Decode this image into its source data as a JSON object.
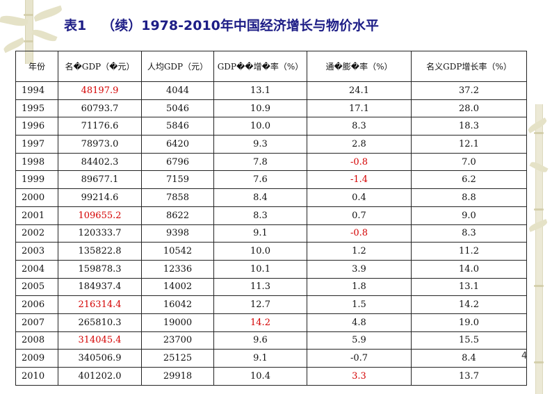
{
  "slide": {
    "title_label": "表1",
    "title_text": "（续）1978-2010年中国经济增长与物价水平",
    "page_number": "4"
  },
  "table": {
    "headers": [
      "年份",
      "名�GDP（�元）",
      "人均GDP（元）",
      "GDP��增�率（%）",
      "通�膨�率（%）",
      "名义GDP增长率（%）"
    ],
    "rows": [
      {
        "year": "1994",
        "nominal_gdp": "48197.9",
        "per_capita": "4044",
        "real_growth": "13.1",
        "inflation": "24.1",
        "nominal_growth": "37.2"
      },
      {
        "year": "1995",
        "nominal_gdp": "60793.7",
        "per_capita": "5046",
        "real_growth": "10.9",
        "inflation": "17.1",
        "nominal_growth": "28.0"
      },
      {
        "year": "1996",
        "nominal_gdp": "71176.6",
        "per_capita": "5846",
        "real_growth": "10.0",
        "inflation": "8.3",
        "nominal_growth": "18.3"
      },
      {
        "year": "1997",
        "nominal_gdp": "78973.0",
        "per_capita": "6420",
        "real_growth": "9.3",
        "inflation": "2.8",
        "nominal_growth": "12.1"
      },
      {
        "year": "1998",
        "nominal_gdp": "84402.3",
        "per_capita": "6796",
        "real_growth": "7.8",
        "inflation": "-0.8",
        "nominal_growth": "7.0"
      },
      {
        "year": "1999",
        "nominal_gdp": "89677.1",
        "per_capita": "7159",
        "real_growth": "7.6",
        "inflation": "-1.4",
        "nominal_growth": "6.2"
      },
      {
        "year": "2000",
        "nominal_gdp": "99214.6",
        "per_capita": "7858",
        "real_growth": "8.4",
        "inflation": "0.4",
        "nominal_growth": "8.8"
      },
      {
        "year": "2001",
        "nominal_gdp": "109655.2",
        "per_capita": "8622",
        "real_growth": "8.3",
        "inflation": "0.7",
        "nominal_growth": "9.0"
      },
      {
        "year": "2002",
        "nominal_gdp": "120333.7",
        "per_capita": "9398",
        "real_growth": "9.1",
        "inflation": "-0.8",
        "nominal_growth": "8.3"
      },
      {
        "year": "2003",
        "nominal_gdp": "135822.8",
        "per_capita": "10542",
        "real_growth": "10.0",
        "inflation": "1.2",
        "nominal_growth": "11.2"
      },
      {
        "year": "2004",
        "nominal_gdp": "159878.3",
        "per_capita": "12336",
        "real_growth": "10.1",
        "inflation": "3.9",
        "nominal_growth": "14.0"
      },
      {
        "year": "2005",
        "nominal_gdp": "184937.4",
        "per_capita": "14002",
        "real_growth": "11.3",
        "inflation": "1.8",
        "nominal_growth": "13.1"
      },
      {
        "year": "2006",
        "nominal_gdp": "216314.4",
        "per_capita": "16042",
        "real_growth": "12.7",
        "inflation": "1.5",
        "nominal_growth": "14.2"
      },
      {
        "year": "2007",
        "nominal_gdp": "265810.3",
        "per_capita": "19000",
        "real_growth": "14.2",
        "inflation": "4.8",
        "nominal_growth": "19.0"
      },
      {
        "year": "2008",
        "nominal_gdp": "314045.4",
        "per_capita": "23700",
        "real_growth": "9.6",
        "inflation": "5.9",
        "nominal_growth": "15.5"
      },
      {
        "year": "2009",
        "nominal_gdp": "340506.9",
        "per_capita": "25125",
        "real_growth": "9.1",
        "inflation": "-0.7",
        "nominal_growth": "8.4"
      },
      {
        "year": "2010",
        "nominal_gdp": "401202.0",
        "per_capita": "29918",
        "real_growth": "10.4",
        "inflation": "3.3",
        "nominal_growth": "13.7"
      }
    ],
    "highlight_color": "#d40000",
    "highlights": [
      {
        "row": 0,
        "col": "nominal_gdp"
      },
      {
        "row": 4,
        "col": "inflation"
      },
      {
        "row": 5,
        "col": "inflation"
      },
      {
        "row": 7,
        "col": "nominal_gdp"
      },
      {
        "row": 8,
        "col": "inflation"
      },
      {
        "row": 12,
        "col": "nominal_gdp"
      },
      {
        "row": 13,
        "col": "real_growth"
      },
      {
        "row": 14,
        "col": "nominal_gdp"
      },
      {
        "row": 16,
        "col": "inflation"
      }
    ]
  },
  "decoration": {
    "icon": "bamboo-icon",
    "color": "#e5e2c7"
  }
}
